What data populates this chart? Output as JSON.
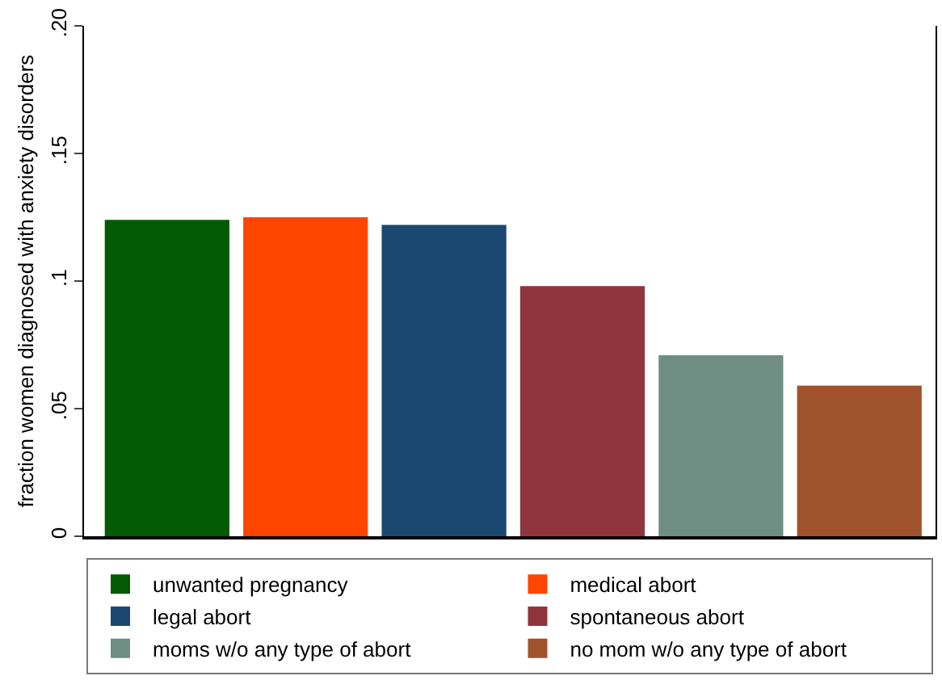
{
  "chart_data": {
    "type": "bar",
    "ylabel": "fraction women diagnosed with anxiety disorders",
    "categories": [
      null,
      null,
      null,
      null,
      null,
      null
    ],
    "series": [
      {
        "name": "unwanted pregnancy",
        "color": "#025a02",
        "values": [
          0.124,
          null,
          null,
          null,
          null,
          null
        ]
      },
      {
        "name": "medical abort",
        "color": "#ff4500",
        "values": [
          null,
          0.125,
          null,
          null,
          null,
          null
        ]
      },
      {
        "name": "legal abort",
        "color": "#1b4870",
        "values": [
          null,
          null,
          0.122,
          null,
          null,
          null
        ]
      },
      {
        "name": "spontaneous abort",
        "color": "#90353d",
        "values": [
          null,
          null,
          null,
          0.098,
          null,
          null
        ]
      },
      {
        "name": "moms w/o any type of abort",
        "color": "#6e8e84",
        "values": [
          null,
          null,
          null,
          null,
          0.071,
          null
        ]
      },
      {
        "name": "no mom w/o any type of abort",
        "color": "#a0522d",
        "values": [
          null,
          null,
          null,
          null,
          null,
          0.059
        ]
      }
    ],
    "ylim": [
      0,
      0.2
    ],
    "yticks": [
      0,
      {
        "value": 0.05,
        "label": ".05"
      },
      {
        "value": 0.1,
        "label": ".1"
      },
      {
        "value": 0.15,
        "label": ".15"
      },
      {
        "value": 0.2,
        "label": ".20"
      }
    ],
    "grid": false,
    "legend": "bottom",
    "tick_labels": "y"
  }
}
